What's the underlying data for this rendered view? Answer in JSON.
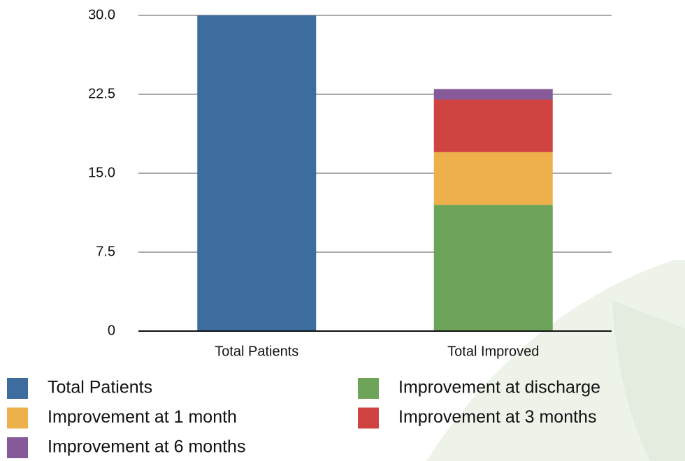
{
  "chart_data": {
    "type": "stacked-bar",
    "categories": [
      "Total Patients",
      "Total Improved"
    ],
    "series": [
      {
        "name": "Total Patients",
        "color": "#3d6d9e",
        "values": [
          30,
          null
        ]
      },
      {
        "name": "Improvement at discharge",
        "color": "#6ea45a",
        "values": [
          null,
          12
        ]
      },
      {
        "name": "Improvement at 1 month",
        "color": "#edb04a",
        "values": [
          null,
          5
        ]
      },
      {
        "name": "Improvement at 3 months",
        "color": "#cf4440",
        "values": [
          null,
          5
        ]
      },
      {
        "name": "Improvement at 6 months",
        "color": "#865a98",
        "values": [
          null,
          1
        ]
      }
    ],
    "ylim": [
      0,
      30
    ],
    "yticks": [
      0,
      7.5,
      {
        "value": 15,
        "label": "15.0"
      },
      22.5,
      {
        "value": 30,
        "label": "30.0"
      }
    ],
    "grid": true
  }
}
